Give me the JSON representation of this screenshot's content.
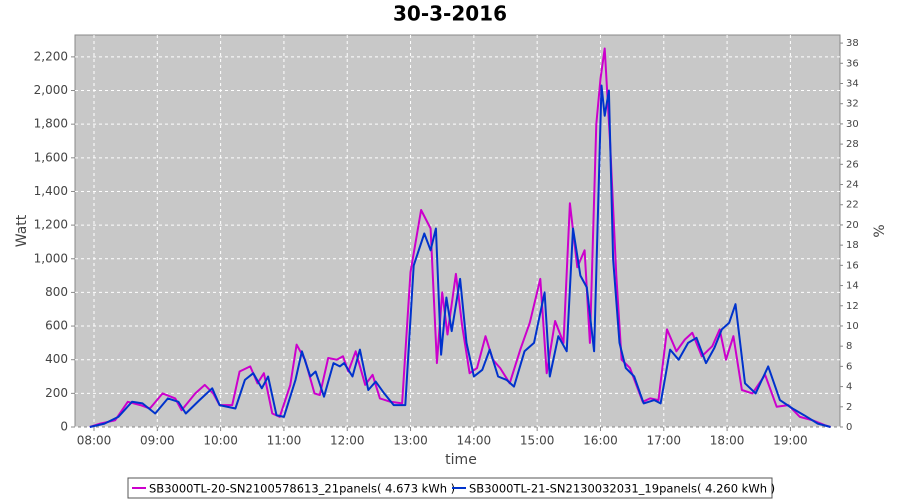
{
  "chart_data": {
    "type": "line",
    "title": "30-3-2016",
    "xlabel": "time",
    "ylabel": "Watt",
    "y2label": "%",
    "xlim": [
      "07:42",
      "19:47"
    ],
    "xticks": [
      "08:00",
      "09:00",
      "10:00",
      "11:00",
      "12:00",
      "13:00",
      "14:00",
      "15:00",
      "16:00",
      "17:00",
      "18:00",
      "19:00"
    ],
    "ylim": [
      0,
      2330
    ],
    "yticks": [
      0,
      200,
      400,
      600,
      800,
      {
        "value": 1000,
        "label": "1,000"
      },
      {
        "value": 1200,
        "label": "1,200"
      },
      {
        "value": 1400,
        "label": "1,400"
      },
      {
        "value": 1600,
        "label": "1,600"
      },
      {
        "value": 1800,
        "label": "1,800"
      },
      {
        "value": 2000,
        "label": "2,000"
      },
      {
        "value": 2200,
        "label": "2,200"
      }
    ],
    "y2lim": [
      0,
      38.8
    ],
    "y2ticks": [
      0,
      2,
      4,
      6,
      8,
      10,
      12,
      14,
      16,
      18,
      20,
      22,
      24,
      26,
      28,
      30,
      32,
      34,
      36,
      38
    ],
    "grid": true,
    "legend": "bottom",
    "series": [
      {
        "name": "SB3000TL-20-SN2100578613_21panels( 4.673 kWh )",
        "color": "#cc00cc",
        "x": [
          "07:56",
          "08:06",
          "08:20",
          "08:32",
          "08:44",
          "08:53",
          "09:05",
          "09:17",
          "09:23",
          "09:36",
          "09:45",
          "09:53",
          "09:59",
          "10:11",
          "10:18",
          "10:28",
          "10:35",
          "10:41",
          "10:49",
          "10:56",
          "11:06",
          "11:12",
          "11:20",
          "11:29",
          "11:34",
          "11:42",
          "11:50",
          "11:56",
          "12:01",
          "12:08",
          "12:17",
          "12:24",
          "12:31",
          "12:41",
          "12:52",
          "13:00",
          "13:10",
          "13:19",
          "13:25",
          "13:30",
          "13:35",
          "13:43",
          "13:49",
          "13:56",
          "14:03",
          "14:11",
          "14:18",
          "14:25",
          "14:34",
          "14:44",
          "14:53",
          "15:03",
          "15:09",
          "15:17",
          "15:25",
          "15:31",
          "15:38",
          "15:45",
          "15:50",
          "15:56",
          "16:00",
          "16:04",
          "16:09",
          "16:15",
          "16:20",
          "16:28",
          "16:40",
          "16:47",
          "16:55",
          "17:03",
          "17:12",
          "17:20",
          "17:27",
          "17:36",
          "17:46",
          "17:53",
          "17:59",
          "18:06",
          "18:14",
          "18:24",
          "18:36",
          "18:47",
          "18:58",
          "19:09",
          "19:21",
          "19:33",
          "19:38"
        ],
        "values": [
          0,
          20,
          40,
          150,
          130,
          110,
          200,
          170,
          100,
          200,
          250,
          200,
          130,
          130,
          330,
          360,
          260,
          320,
          80,
          60,
          250,
          490,
          400,
          200,
          190,
          410,
          400,
          420,
          330,
          450,
          250,
          310,
          170,
          150,
          140,
          920,
          1290,
          1180,
          380,
          800,
          550,
          910,
          600,
          320,
          350,
          540,
          400,
          350,
          260,
          460,
          620,
          880,
          320,
          630,
          500,
          1330,
          950,
          1050,
          500,
          1800,
          2070,
          2250,
          1700,
          900,
          400,
          350,
          150,
          170,
          160,
          580,
          450,
          520,
          560,
          420,
          480,
          580,
          400,
          540,
          220,
          200,
          310,
          120,
          130,
          60,
          40,
          10,
          0
        ]
      },
      {
        "name": "SB3000TL-21-SN2130032031_19panels( 4.260 kWh )",
        "color": "#0033cc",
        "x": [
          "07:56",
          "08:10",
          "08:23",
          "08:36",
          "08:46",
          "08:58",
          "09:10",
          "09:20",
          "09:27",
          "09:40",
          "09:52",
          "09:59",
          "10:14",
          "10:23",
          "10:31",
          "10:39",
          "10:45",
          "10:53",
          "11:00",
          "11:11",
          "11:17",
          "11:25",
          "11:30",
          "11:38",
          "11:47",
          "11:53",
          "11:57",
          "12:05",
          "12:12",
          "12:20",
          "12:27",
          "12:35",
          "12:44",
          "12:55",
          "13:03",
          "13:13",
          "13:19",
          "13:24",
          "13:29",
          "13:34",
          "13:39",
          "13:47",
          "13:53",
          "14:00",
          "14:08",
          "14:15",
          "14:23",
          "14:31",
          "14:38",
          "14:48",
          "14:57",
          "15:07",
          "15:12",
          "15:20",
          "15:28",
          "15:34",
          "15:41",
          "15:47",
          "15:54",
          "16:01",
          "16:04",
          "16:08",
          "16:12",
          "16:18",
          "16:24",
          "16:32",
          "16:41",
          "16:51",
          "16:57",
          "17:06",
          "17:14",
          "17:23",
          "17:31",
          "17:40",
          "17:48",
          "17:55",
          "18:02",
          "18:08",
          "18:17",
          "18:27",
          "18:39",
          "18:50",
          "19:02",
          "19:13",
          "19:26",
          "19:38"
        ],
        "values": [
          0,
          20,
          60,
          150,
          140,
          80,
          170,
          150,
          80,
          160,
          230,
          130,
          110,
          280,
          320,
          230,
          300,
          70,
          60,
          280,
          450,
          300,
          330,
          180,
          380,
          360,
          380,
          300,
          460,
          220,
          270,
          200,
          130,
          130,
          960,
          1150,
          1050,
          1180,
          430,
          770,
          570,
          880,
          500,
          300,
          340,
          460,
          300,
          280,
          240,
          450,
          500,
          800,
          300,
          540,
          450,
          1180,
          900,
          830,
          450,
          2030,
          1850,
          2000,
          1000,
          500,
          350,
          300,
          140,
          160,
          140,
          460,
          400,
          500,
          530,
          380,
          470,
          580,
          620,
          730,
          260,
          200,
          360,
          160,
          110,
          70,
          20,
          0
        ]
      }
    ]
  }
}
